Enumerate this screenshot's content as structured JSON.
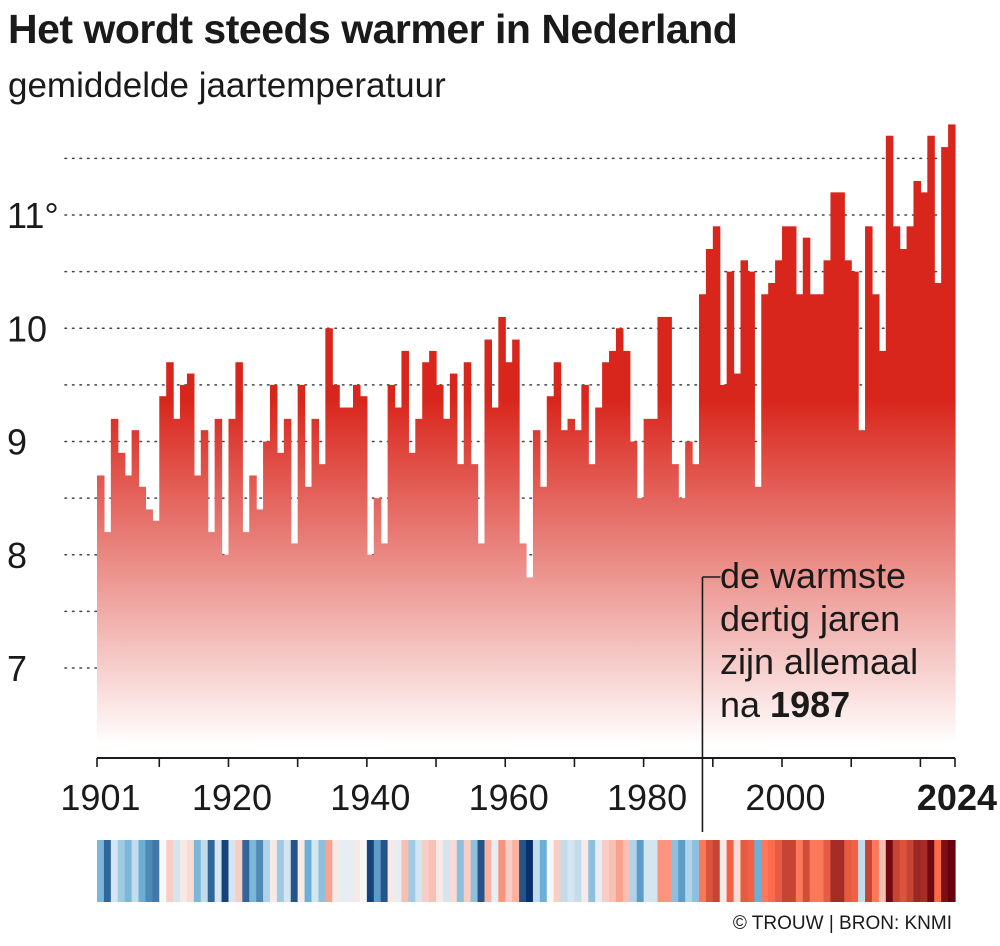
{
  "header": {
    "title": "Het wordt steeds warmer in Nederland",
    "subtitle": "gemiddelde jaartemperatuur"
  },
  "footer": {
    "credit": "© TROUW | BRON: KNMI"
  },
  "annotation": {
    "lines": [
      "de warmste",
      "dertig jaren",
      "zijn allemaal"
    ],
    "last_prefix": "na ",
    "last_bold": "1987",
    "year": 1988.5
  },
  "colors": {
    "bar_top": "#d9261c",
    "bar_bottom": "#ffffff",
    "text": "#1a1a1a",
    "grid": "#444444",
    "stripe_cold_dark": "#08306b",
    "stripe_cold": "#6baed6",
    "stripe_neutral": "#f7f7f7",
    "stripe_warm": "#fb6a4a",
    "stripe_hot_dark": "#67000d"
  },
  "chart_data": {
    "type": "bar",
    "title": "Het wordt steeds warmer in Nederland",
    "subtitle": "gemiddelde jaartemperatuur",
    "xlabel": "",
    "ylabel": "",
    "x_ticks": [
      "1901",
      "1920",
      "1940",
      "1960",
      "1980",
      "2000",
      "2024"
    ],
    "x_tick_years": [
      1901,
      1920,
      1940,
      1960,
      1980,
      2000,
      2024
    ],
    "y_ticks": [
      {
        "value": 7,
        "label": "7"
      },
      {
        "value": 8,
        "label": "8"
      },
      {
        "value": 9,
        "label": "9"
      },
      {
        "value": 10,
        "label": "10"
      },
      {
        "value": 11,
        "label": "11°"
      }
    ],
    "ylim": [
      6.25,
      11.75
    ],
    "grid": true,
    "year_start": 1901,
    "year_end": 2024,
    "years": [
      1901,
      1902,
      1903,
      1904,
      1905,
      1906,
      1907,
      1908,
      1909,
      1910,
      1911,
      1912,
      1913,
      1914,
      1915,
      1916,
      1917,
      1918,
      1919,
      1920,
      1921,
      1922,
      1923,
      1924,
      1925,
      1926,
      1927,
      1928,
      1929,
      1930,
      1931,
      1932,
      1933,
      1934,
      1935,
      1936,
      1937,
      1938,
      1939,
      1940,
      1941,
      1942,
      1943,
      1944,
      1945,
      1946,
      1947,
      1948,
      1949,
      1950,
      1951,
      1952,
      1953,
      1954,
      1955,
      1956,
      1957,
      1958,
      1959,
      1960,
      1961,
      1962,
      1963,
      1964,
      1965,
      1966,
      1967,
      1968,
      1969,
      1970,
      1971,
      1972,
      1973,
      1974,
      1975,
      1976,
      1977,
      1978,
      1979,
      1980,
      1981,
      1982,
      1983,
      1984,
      1985,
      1986,
      1987,
      1988,
      1989,
      1990,
      1991,
      1992,
      1993,
      1994,
      1995,
      1996,
      1997,
      1998,
      1999,
      2000,
      2001,
      2002,
      2003,
      2004,
      2005,
      2006,
      2007,
      2008,
      2009,
      2010,
      2011,
      2012,
      2013,
      2014,
      2015,
      2016,
      2017,
      2018,
      2019,
      2020,
      2021,
      2022,
      2023,
      2024
    ],
    "values": [
      8.7,
      8.2,
      9.2,
      8.9,
      8.7,
      9.1,
      8.6,
      8.4,
      8.3,
      9.4,
      9.7,
      9.2,
      9.5,
      9.6,
      8.7,
      9.1,
      8.2,
      9.2,
      8.0,
      9.2,
      9.7,
      8.2,
      8.7,
      8.4,
      9.0,
      9.5,
      8.9,
      9.2,
      8.1,
      9.5,
      8.6,
      9.2,
      8.8,
      10.0,
      9.5,
      9.3,
      9.3,
      9.5,
      9.4,
      8.0,
      8.5,
      8.1,
      9.5,
      9.3,
      9.8,
      8.9,
      9.2,
      9.7,
      9.8,
      9.5,
      9.2,
      9.6,
      8.8,
      9.7,
      8.8,
      8.1,
      9.9,
      9.3,
      10.1,
      9.7,
      9.9,
      8.1,
      7.8,
      9.1,
      8.6,
      9.4,
      9.7,
      9.1,
      9.2,
      9.1,
      9.5,
      8.8,
      9.3,
      9.7,
      9.8,
      10.0,
      9.8,
      9.0,
      8.5,
      9.2,
      9.2,
      10.1,
      10.1,
      8.8,
      8.5,
      9.0,
      8.8,
      10.3,
      10.7,
      10.9,
      9.5,
      10.5,
      9.6,
      10.6,
      10.5,
      8.6,
      10.3,
      10.4,
      10.6,
      10.9,
      10.9,
      10.3,
      10.8,
      10.3,
      10.3,
      10.6,
      11.2,
      11.2,
      10.6,
      10.5,
      9.1,
      10.9,
      10.3,
      9.8,
      11.7,
      10.9,
      10.7,
      10.9,
      11.3,
      11.2,
      11.7,
      10.4,
      11.6,
      11.8
    ]
  }
}
